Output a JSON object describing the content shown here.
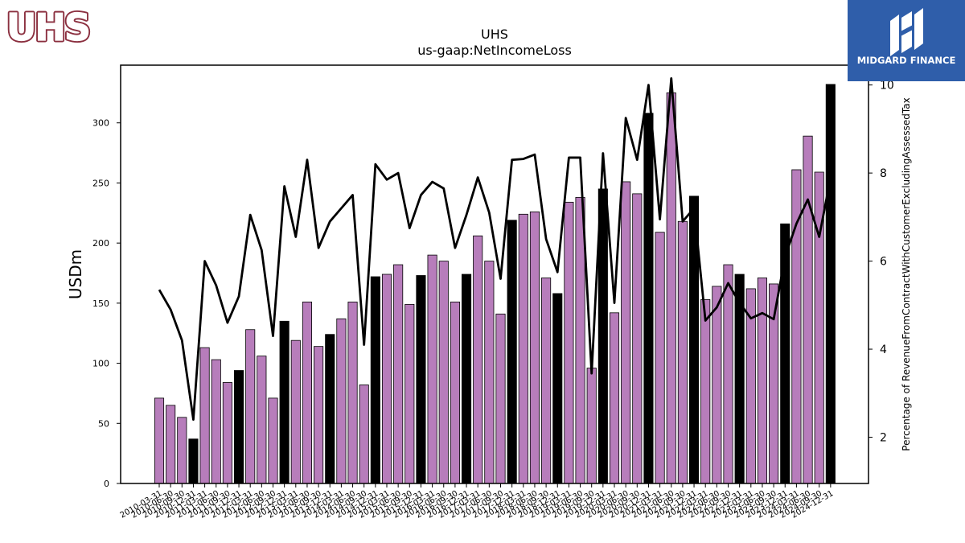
{
  "logos": {
    "left": "UHS",
    "right": "MIDGARD FINANCE"
  },
  "chart_data": {
    "type": "bar",
    "title": "UHS",
    "subtitle": "us-gaap:NetIncomeLoss",
    "ylabel": "USDm",
    "y2label": "Percentage of RevenueFromContractWithCustomerExcludingAssessedTax",
    "ylim": [
      0,
      348
    ],
    "y2lim": [
      0.95,
      10.45
    ],
    "yticks": [
      0,
      50,
      100,
      150,
      200,
      250,
      300
    ],
    "y2ticks": [
      2,
      4,
      6,
      8,
      10
    ],
    "grid": false,
    "colors": {
      "bar_default": "#b77dbb",
      "bar_highlight": "#000000",
      "line": "#000000"
    },
    "categories": [
      "2010-03-31",
      "2010-06-30",
      "2010-09-30",
      "2010-12-31",
      "2011-03-31",
      "2011-06-30",
      "2011-09-30",
      "2011-12-31",
      "2012-03-31",
      "2012-06-30",
      "2012-09-30",
      "2012-12-31",
      "2013-03-31",
      "2013-06-30",
      "2013-09-30",
      "2013-12-31",
      "2014-03-31",
      "2014-06-30",
      "2014-09-30",
      "2014-12-31",
      "2015-03-31",
      "2015-06-30",
      "2015-09-30",
      "2015-12-31",
      "2016-03-31",
      "2016-06-30",
      "2016-09-30",
      "2016-12-31",
      "2017-03-31",
      "2017-06-30",
      "2017-09-30",
      "2017-12-31",
      "2018-03-31",
      "2018-06-30",
      "2018-09-30",
      "2018-12-31",
      "2019-03-31",
      "2019-06-30",
      "2019-09-30",
      "2019-12-31",
      "2020-03-31",
      "2020-06-30",
      "2020-09-30",
      "2020-12-31",
      "2021-03-31",
      "2021-06-30",
      "2021-09-30",
      "2021-12-31",
      "2022-03-31",
      "2022-06-30",
      "2022-09-30",
      "2022-12-31",
      "2023-03-31",
      "2023-06-30",
      "2023-09-30",
      "2023-12-31",
      "2024-03-31",
      "2024-06-30",
      "2024-09-30",
      "2024-12-31"
    ],
    "tick_labels_shown": [
      "2010-03-31",
      "2010-06-30",
      "2010-09-30",
      "2010-12-31",
      "2011-03-31",
      "2011-06-30",
      "2011-09-30",
      "2011-12-31",
      "2012-03-31",
      "2012-06-30",
      "2012-09-30",
      "2012-12-31",
      "2013-03-31",
      "2013-06-30",
      "2013-09-30",
      "2013-12-31",
      "2014-03-31",
      "2014-06-30",
      "2014-09-30",
      "2014-12-31",
      "2015-03-31",
      "2015-06-30",
      "2015-09-30",
      "2015-12-31",
      "2016-03-31",
      "2016-06-30",
      "2016-09-30",
      "2016-12-31",
      "2017-03-31",
      "2017-06-30",
      "2017-09-30",
      "2017-12-31",
      "2018-03-31",
      "2018-06-30",
      "2018-09-30",
      "2018-12-31",
      "2019-03-31",
      "2019-06-30",
      "2019-09-30",
      "2019-12-31",
      "2020-03-31",
      "2020-06-30",
      "2020-09-30",
      "2020-12-31",
      "2021-03-31",
      "2021-06-30",
      "2021-09-30",
      "2021-12-31",
      "2022-03-31",
      "2022-06-30",
      "2022-09-30",
      "2022-12-31",
      "2023-03-31",
      "2023-06-30",
      "2023-09-30",
      "2023-12-31",
      "2024-03-31",
      "2024-06-30",
      "2024-09-30",
      "2024-12-31"
    ],
    "series": [
      {
        "type": "bar",
        "axis": "left",
        "values": [
          71,
          65,
          55,
          37,
          113,
          103,
          84,
          94,
          128,
          106,
          71,
          135,
          119,
          151,
          114,
          124,
          137,
          151,
          82,
          172,
          174,
          182,
          149,
          173,
          190,
          185,
          151,
          174,
          206,
          185,
          141,
          219,
          224,
          226,
          171,
          158,
          234,
          238,
          96,
          245,
          142,
          251,
          241,
          308,
          209,
          325,
          218,
          239,
          153,
          164,
          182,
          174,
          162,
          171,
          166,
          216,
          261,
          289,
          259,
          332
        ],
        "highlight_indices": [
          3,
          7,
          11,
          15,
          19,
          23,
          27,
          31,
          35,
          39,
          43,
          47,
          51,
          55,
          59
        ]
      },
      {
        "type": "line",
        "axis": "right",
        "values": [
          5.35,
          4.9,
          4.2,
          2.4,
          6.0,
          5.45,
          4.6,
          5.2,
          7.05,
          6.25,
          4.3,
          7.7,
          6.55,
          8.3,
          6.3,
          6.9,
          7.2,
          7.5,
          4.1,
          8.2,
          7.85,
          8.0,
          6.75,
          7.5,
          7.8,
          7.65,
          6.3,
          7.05,
          7.9,
          7.1,
          5.6,
          8.3,
          8.32,
          8.42,
          6.5,
          5.75,
          8.35,
          8.35,
          3.45,
          8.45,
          5.05,
          9.25,
          8.3,
          10.0,
          6.95,
          10.15,
          6.9,
          7.2,
          4.65,
          4.95,
          5.5,
          5.05,
          4.7,
          4.82,
          4.68,
          6.1,
          6.85,
          7.4,
          6.55,
          7.9
        ]
      }
    ]
  }
}
